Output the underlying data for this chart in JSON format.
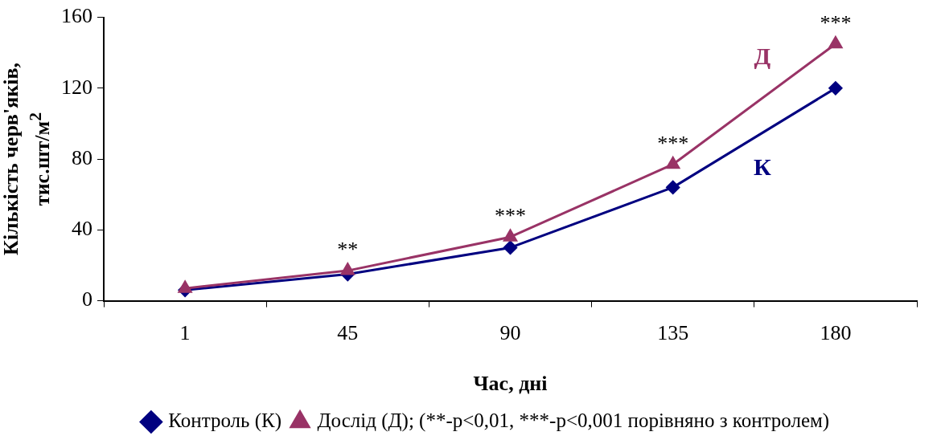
{
  "chart_data": {
    "type": "line",
    "xlabel": "Час, дні",
    "ylabel": "Кількість черв'яків, тис.шт/м$^{2}$",
    "categories": [
      "1",
      "45",
      "90",
      "135",
      "180"
    ],
    "series": [
      {
        "name": "Контроль (К)",
        "color": "#000080",
        "marker": "diamond",
        "values": [
          6,
          15,
          30,
          64,
          120
        ]
      },
      {
        "name": "Дослід (Д); (**-p<0,01, ***-p<0,001 порівняно з контролем)",
        "color": "#993366",
        "marker": "triangle",
        "values": [
          7,
          17,
          36,
          77,
          145
        ]
      }
    ],
    "ylim": [
      0,
      160
    ],
    "yticks": [
      0,
      40,
      80,
      120,
      160
    ],
    "grid": false,
    "legend": "bottom",
    "line_style": "solid",
    "annotations": [
      {
        "text": "**",
        "x": "45",
        "y": 17
      },
      {
        "text": "***",
        "x": "90",
        "y": 36
      },
      {
        "text": "***",
        "x": "135",
        "y": 77
      },
      {
        "text": "***",
        "x": "180",
        "y": 145
      },
      "К",
      "Д"
    ]
  }
}
